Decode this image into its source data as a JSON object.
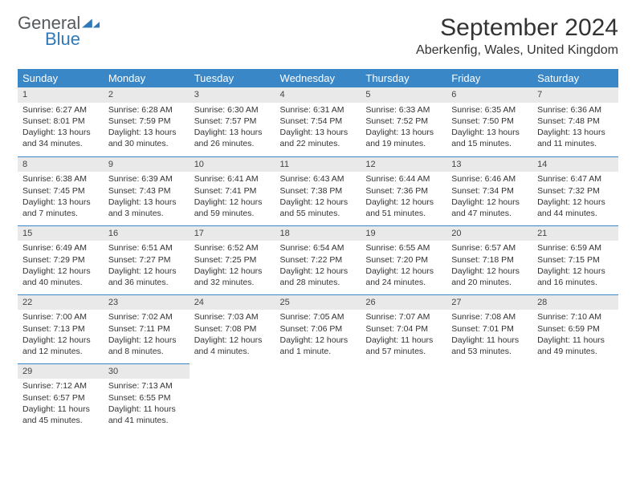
{
  "brand": {
    "line1": "General",
    "line2": "Blue"
  },
  "title": "September 2024",
  "location": "Aberkenfig, Wales, United Kingdom",
  "colors": {
    "header_bg": "#3a87c8",
    "header_text": "#ffffff",
    "daynum_bg": "#e9e9e9",
    "rule": "#3a87c8",
    "logo_blue": "#2f79b9",
    "logo_gray": "#555a5f"
  },
  "weekdays": [
    "Sunday",
    "Monday",
    "Tuesday",
    "Wednesday",
    "Thursday",
    "Friday",
    "Saturday"
  ],
  "weeks": [
    [
      {
        "n": "1",
        "sr": "Sunrise: 6:27 AM",
        "ss": "Sunset: 8:01 PM",
        "d1": "Daylight: 13 hours",
        "d2": "and 34 minutes."
      },
      {
        "n": "2",
        "sr": "Sunrise: 6:28 AM",
        "ss": "Sunset: 7:59 PM",
        "d1": "Daylight: 13 hours",
        "d2": "and 30 minutes."
      },
      {
        "n": "3",
        "sr": "Sunrise: 6:30 AM",
        "ss": "Sunset: 7:57 PM",
        "d1": "Daylight: 13 hours",
        "d2": "and 26 minutes."
      },
      {
        "n": "4",
        "sr": "Sunrise: 6:31 AM",
        "ss": "Sunset: 7:54 PM",
        "d1": "Daylight: 13 hours",
        "d2": "and 22 minutes."
      },
      {
        "n": "5",
        "sr": "Sunrise: 6:33 AM",
        "ss": "Sunset: 7:52 PM",
        "d1": "Daylight: 13 hours",
        "d2": "and 19 minutes."
      },
      {
        "n": "6",
        "sr": "Sunrise: 6:35 AM",
        "ss": "Sunset: 7:50 PM",
        "d1": "Daylight: 13 hours",
        "d2": "and 15 minutes."
      },
      {
        "n": "7",
        "sr": "Sunrise: 6:36 AM",
        "ss": "Sunset: 7:48 PM",
        "d1": "Daylight: 13 hours",
        "d2": "and 11 minutes."
      }
    ],
    [
      {
        "n": "8",
        "sr": "Sunrise: 6:38 AM",
        "ss": "Sunset: 7:45 PM",
        "d1": "Daylight: 13 hours",
        "d2": "and 7 minutes."
      },
      {
        "n": "9",
        "sr": "Sunrise: 6:39 AM",
        "ss": "Sunset: 7:43 PM",
        "d1": "Daylight: 13 hours",
        "d2": "and 3 minutes."
      },
      {
        "n": "10",
        "sr": "Sunrise: 6:41 AM",
        "ss": "Sunset: 7:41 PM",
        "d1": "Daylight: 12 hours",
        "d2": "and 59 minutes."
      },
      {
        "n": "11",
        "sr": "Sunrise: 6:43 AM",
        "ss": "Sunset: 7:38 PM",
        "d1": "Daylight: 12 hours",
        "d2": "and 55 minutes."
      },
      {
        "n": "12",
        "sr": "Sunrise: 6:44 AM",
        "ss": "Sunset: 7:36 PM",
        "d1": "Daylight: 12 hours",
        "d2": "and 51 minutes."
      },
      {
        "n": "13",
        "sr": "Sunrise: 6:46 AM",
        "ss": "Sunset: 7:34 PM",
        "d1": "Daylight: 12 hours",
        "d2": "and 47 minutes."
      },
      {
        "n": "14",
        "sr": "Sunrise: 6:47 AM",
        "ss": "Sunset: 7:32 PM",
        "d1": "Daylight: 12 hours",
        "d2": "and 44 minutes."
      }
    ],
    [
      {
        "n": "15",
        "sr": "Sunrise: 6:49 AM",
        "ss": "Sunset: 7:29 PM",
        "d1": "Daylight: 12 hours",
        "d2": "and 40 minutes."
      },
      {
        "n": "16",
        "sr": "Sunrise: 6:51 AM",
        "ss": "Sunset: 7:27 PM",
        "d1": "Daylight: 12 hours",
        "d2": "and 36 minutes."
      },
      {
        "n": "17",
        "sr": "Sunrise: 6:52 AM",
        "ss": "Sunset: 7:25 PM",
        "d1": "Daylight: 12 hours",
        "d2": "and 32 minutes."
      },
      {
        "n": "18",
        "sr": "Sunrise: 6:54 AM",
        "ss": "Sunset: 7:22 PM",
        "d1": "Daylight: 12 hours",
        "d2": "and 28 minutes."
      },
      {
        "n": "19",
        "sr": "Sunrise: 6:55 AM",
        "ss": "Sunset: 7:20 PM",
        "d1": "Daylight: 12 hours",
        "d2": "and 24 minutes."
      },
      {
        "n": "20",
        "sr": "Sunrise: 6:57 AM",
        "ss": "Sunset: 7:18 PM",
        "d1": "Daylight: 12 hours",
        "d2": "and 20 minutes."
      },
      {
        "n": "21",
        "sr": "Sunrise: 6:59 AM",
        "ss": "Sunset: 7:15 PM",
        "d1": "Daylight: 12 hours",
        "d2": "and 16 minutes."
      }
    ],
    [
      {
        "n": "22",
        "sr": "Sunrise: 7:00 AM",
        "ss": "Sunset: 7:13 PM",
        "d1": "Daylight: 12 hours",
        "d2": "and 12 minutes."
      },
      {
        "n": "23",
        "sr": "Sunrise: 7:02 AM",
        "ss": "Sunset: 7:11 PM",
        "d1": "Daylight: 12 hours",
        "d2": "and 8 minutes."
      },
      {
        "n": "24",
        "sr": "Sunrise: 7:03 AM",
        "ss": "Sunset: 7:08 PM",
        "d1": "Daylight: 12 hours",
        "d2": "and 4 minutes."
      },
      {
        "n": "25",
        "sr": "Sunrise: 7:05 AM",
        "ss": "Sunset: 7:06 PM",
        "d1": "Daylight: 12 hours",
        "d2": "and 1 minute."
      },
      {
        "n": "26",
        "sr": "Sunrise: 7:07 AM",
        "ss": "Sunset: 7:04 PM",
        "d1": "Daylight: 11 hours",
        "d2": "and 57 minutes."
      },
      {
        "n": "27",
        "sr": "Sunrise: 7:08 AM",
        "ss": "Sunset: 7:01 PM",
        "d1": "Daylight: 11 hours",
        "d2": "and 53 minutes."
      },
      {
        "n": "28",
        "sr": "Sunrise: 7:10 AM",
        "ss": "Sunset: 6:59 PM",
        "d1": "Daylight: 11 hours",
        "d2": "and 49 minutes."
      }
    ],
    [
      {
        "n": "29",
        "sr": "Sunrise: 7:12 AM",
        "ss": "Sunset: 6:57 PM",
        "d1": "Daylight: 11 hours",
        "d2": "and 45 minutes."
      },
      {
        "n": "30",
        "sr": "Sunrise: 7:13 AM",
        "ss": "Sunset: 6:55 PM",
        "d1": "Daylight: 11 hours",
        "d2": "and 41 minutes."
      },
      {
        "empty": true
      },
      {
        "empty": true
      },
      {
        "empty": true
      },
      {
        "empty": true
      },
      {
        "empty": true
      }
    ]
  ]
}
